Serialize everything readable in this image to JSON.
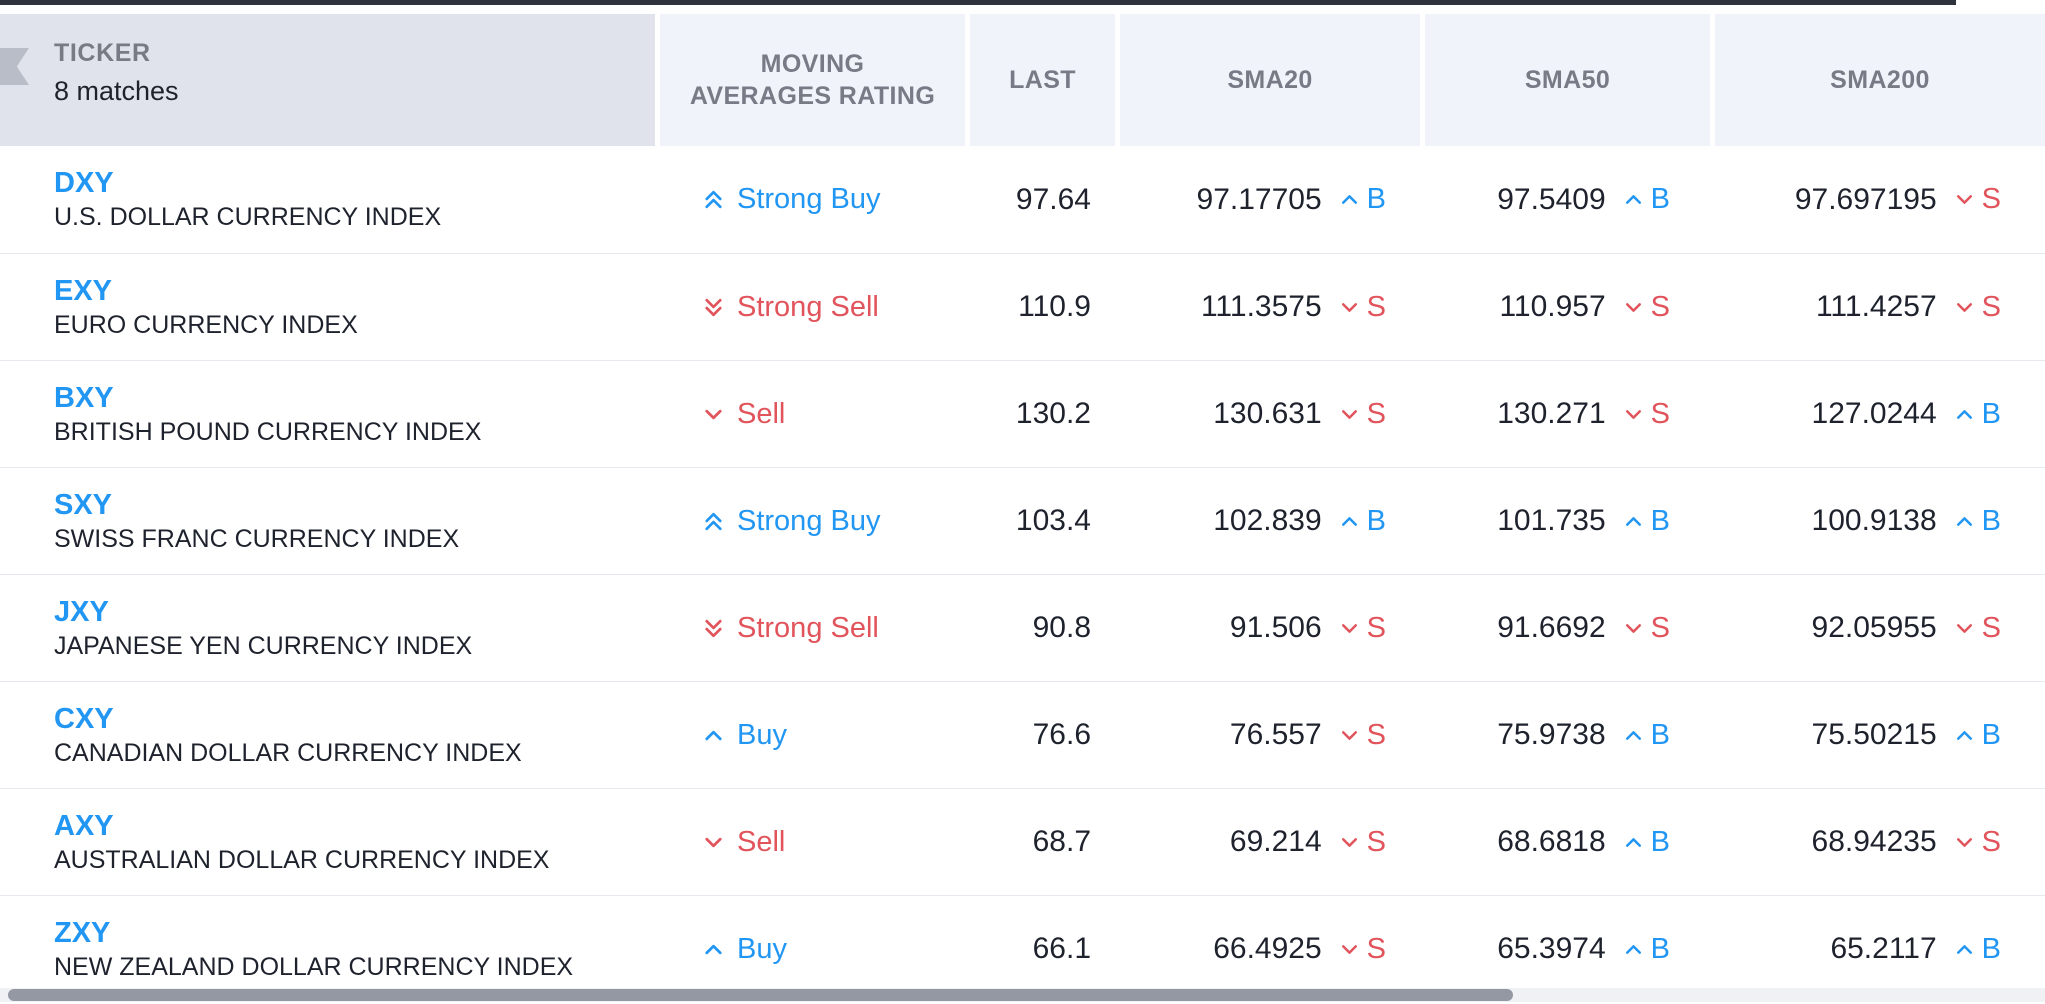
{
  "colors": {
    "buy": "#2196f3",
    "sell": "#e1545c",
    "dark_text": "#1e222d",
    "header_text": "#787b86",
    "ticker_header_bg": "#e0e3eb",
    "header_bg": "#f0f3fa",
    "top_bar": "#2f333d",
    "scrollbar_thumb": "#9398a2",
    "scrollbar_track": "#eff1f5",
    "row_divider": "#e6e8ee"
  },
  "header": {
    "ticker_label": "TICKER",
    "matches_label": "8 matches",
    "rating_label": "MOVING AVERAGES RATING",
    "last_label": "LAST",
    "sma20_label": "SMA20",
    "sma50_label": "SMA50",
    "sma200_label": "SMA200"
  },
  "rows": [
    {
      "symbol": "DXY",
      "description": "U.S. DOLLAR CURRENCY INDEX",
      "rating": {
        "label": "Strong Buy",
        "signal": "buy",
        "chevrons": 2
      },
      "last": "97.64",
      "sma20": {
        "value": "97.17705",
        "signal": "B"
      },
      "sma50": {
        "value": "97.5409",
        "signal": "B"
      },
      "sma200": {
        "value": "97.697195",
        "signal": "S"
      }
    },
    {
      "symbol": "EXY",
      "description": "EURO CURRENCY INDEX",
      "rating": {
        "label": "Strong Sell",
        "signal": "sell",
        "chevrons": 2
      },
      "last": "110.9",
      "sma20": {
        "value": "111.3575",
        "signal": "S"
      },
      "sma50": {
        "value": "110.957",
        "signal": "S"
      },
      "sma200": {
        "value": "111.4257",
        "signal": "S"
      }
    },
    {
      "symbol": "BXY",
      "description": "BRITISH POUND CURRENCY INDEX",
      "rating": {
        "label": "Sell",
        "signal": "sell",
        "chevrons": 1
      },
      "last": "130.2",
      "sma20": {
        "value": "130.631",
        "signal": "S"
      },
      "sma50": {
        "value": "130.271",
        "signal": "S"
      },
      "sma200": {
        "value": "127.0244",
        "signal": "B"
      }
    },
    {
      "symbol": "SXY",
      "description": "SWISS FRANC CURRENCY INDEX",
      "rating": {
        "label": "Strong Buy",
        "signal": "buy",
        "chevrons": 2
      },
      "last": "103.4",
      "sma20": {
        "value": "102.839",
        "signal": "B"
      },
      "sma50": {
        "value": "101.735",
        "signal": "B"
      },
      "sma200": {
        "value": "100.9138",
        "signal": "B"
      }
    },
    {
      "symbol": "JXY",
      "description": "JAPANESE YEN CURRENCY INDEX",
      "rating": {
        "label": "Strong Sell",
        "signal": "sell",
        "chevrons": 2
      },
      "last": "90.8",
      "sma20": {
        "value": "91.506",
        "signal": "S"
      },
      "sma50": {
        "value": "91.6692",
        "signal": "S"
      },
      "sma200": {
        "value": "92.05955",
        "signal": "S"
      }
    },
    {
      "symbol": "CXY",
      "description": "CANADIAN DOLLAR CURRENCY INDEX",
      "rating": {
        "label": "Buy",
        "signal": "buy",
        "chevrons": 1
      },
      "last": "76.6",
      "sma20": {
        "value": "76.557",
        "signal": "S"
      },
      "sma50": {
        "value": "75.9738",
        "signal": "B"
      },
      "sma200": {
        "value": "75.50215",
        "signal": "B"
      }
    },
    {
      "symbol": "AXY",
      "description": "AUSTRALIAN DOLLAR CURRENCY INDEX",
      "rating": {
        "label": "Sell",
        "signal": "sell",
        "chevrons": 1
      },
      "last": "68.7",
      "sma20": {
        "value": "69.214",
        "signal": "S"
      },
      "sma50": {
        "value": "68.6818",
        "signal": "B"
      },
      "sma200": {
        "value": "68.94235",
        "signal": "S"
      }
    },
    {
      "symbol": "ZXY",
      "description": "NEW ZEALAND DOLLAR CURRENCY INDEX",
      "rating": {
        "label": "Buy",
        "signal": "buy",
        "chevrons": 1
      },
      "last": "66.1",
      "sma20": {
        "value": "66.4925",
        "signal": "S"
      },
      "sma50": {
        "value": "65.3974",
        "signal": "B"
      },
      "sma200": {
        "value": "65.2117",
        "signal": "B"
      }
    }
  ]
}
